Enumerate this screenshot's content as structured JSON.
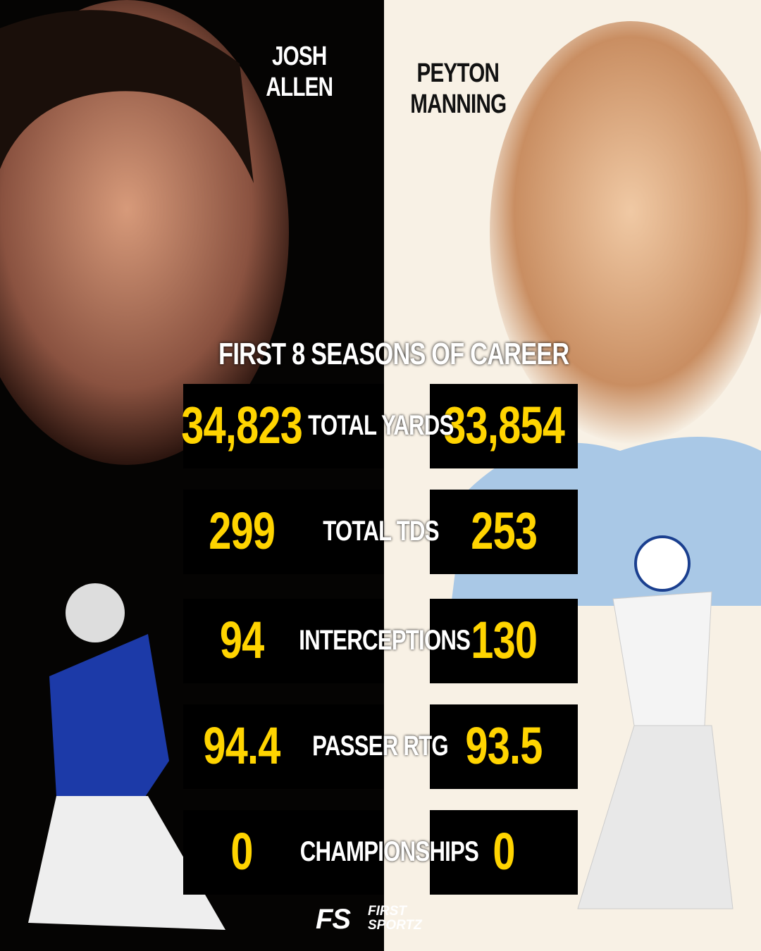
{
  "players": [
    {
      "first": "JOSH",
      "last": "ALLEN"
    },
    {
      "first": "PEYTON",
      "last": "MANNING"
    }
  ],
  "title": "FIRST 8 SEASONS OF CAREER",
  "stats": [
    {
      "label": "TOTAL YARDS",
      "left": "34,823",
      "right": "33,854"
    },
    {
      "label": "TOTAL TDS",
      "left": "299",
      "right": "253"
    },
    {
      "label": "INTERCEPTIONS",
      "left": "94",
      "right": "130"
    },
    {
      "label": "PASSER RTG",
      "left": "94.4",
      "right": "93.5"
    },
    {
      "label": "CHAMPIONSHIPS",
      "left": "0",
      "right": "0"
    }
  ],
  "brand": {
    "mark": "FS",
    "line1": "FIRST",
    "line2": "SPORTZ"
  }
}
